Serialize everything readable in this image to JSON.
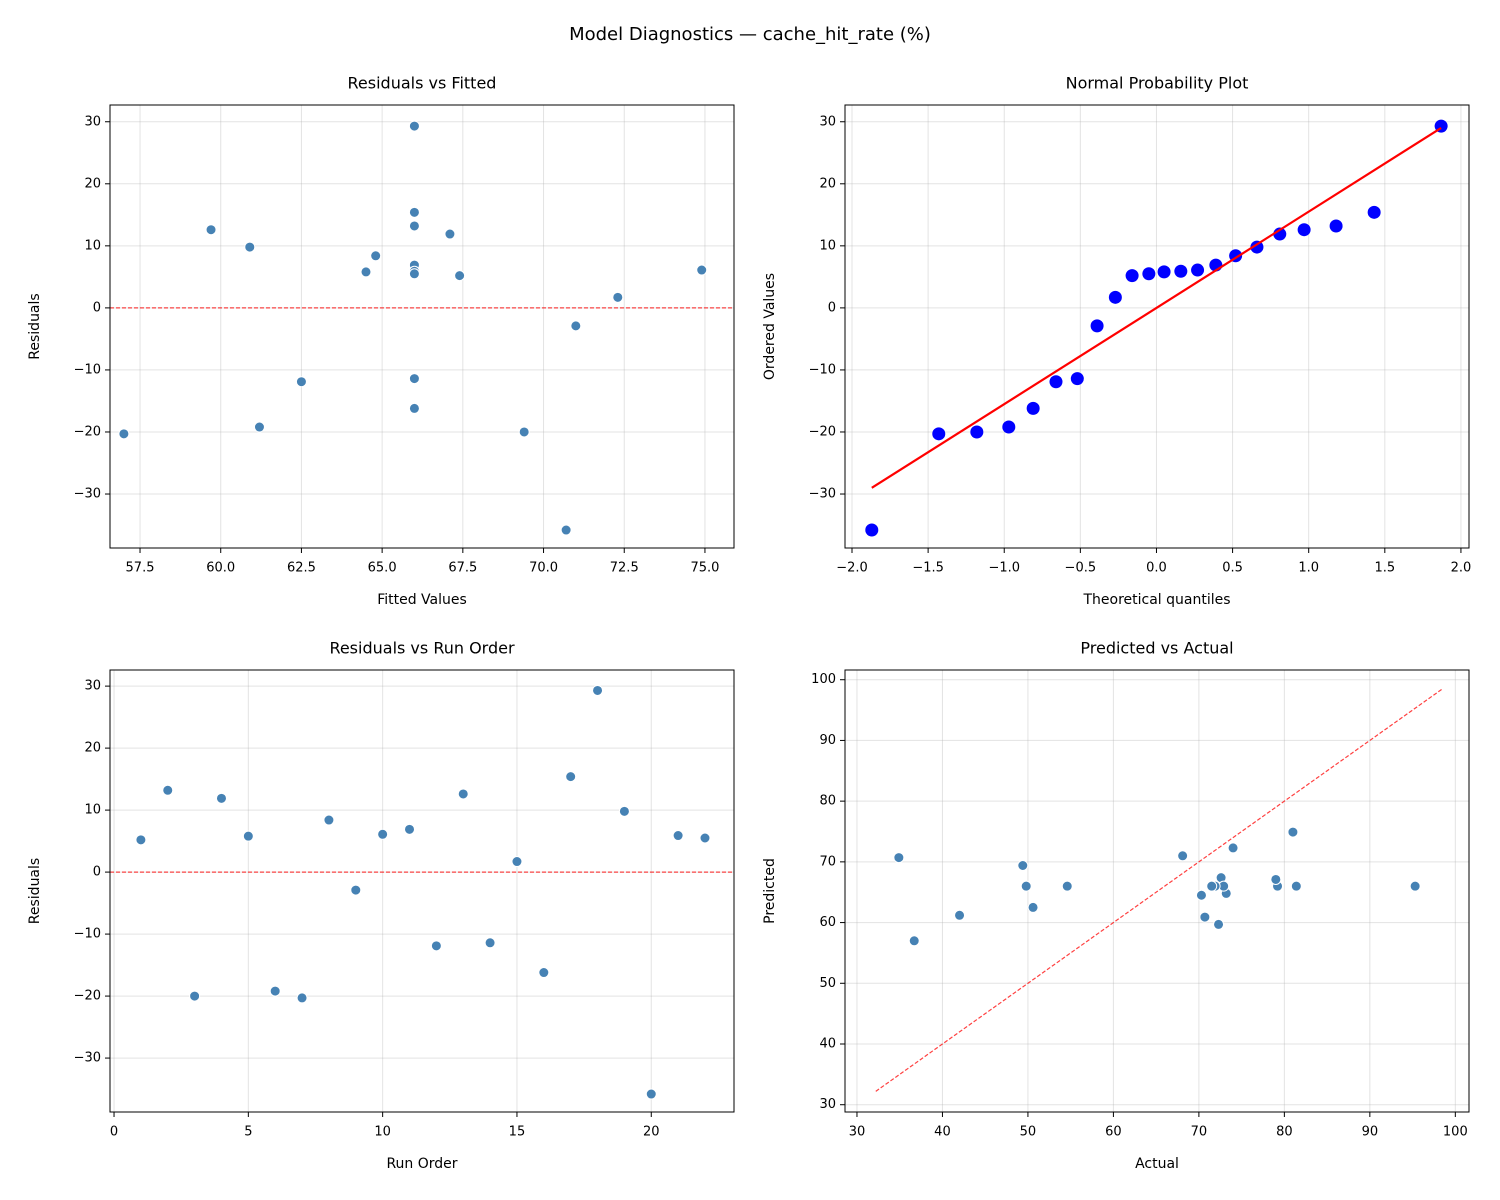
{
  "title": "Model Diagnostics — cache_hit_rate (%)",
  "chart_data": [
    {
      "type": "scatter",
      "title": "Residuals vs Fitted",
      "xlabel": "Fitted Values",
      "ylabel": "Residuals",
      "color": "#4682b4",
      "edgecolor": "#ffffff",
      "grid": true,
      "x": [
        67.4,
        66.0,
        69.4,
        67.1,
        64.5,
        61.2,
        57.0,
        64.8,
        71.0,
        74.9,
        66.0,
        62.5,
        59.7,
        66.0,
        72.3,
        66.0,
        66.0,
        66.0,
        60.9,
        70.7,
        66.0,
        66.0
      ],
      "values": [
        5.2,
        13.2,
        -20.0,
        11.9,
        5.8,
        -19.2,
        -20.3,
        8.4,
        -2.9,
        6.1,
        6.9,
        -11.9,
        12.6,
        -11.4,
        1.7,
        -16.2,
        15.4,
        29.3,
        9.8,
        -35.8,
        5.9,
        5.5
      ],
      "hline": {
        "y": 0,
        "color": "#ff0000"
      },
      "xlim": [
        56.57,
        75.9
      ],
      "xticks": [
        57.5,
        {
          "value": 60,
          "label": "60.0"
        },
        62.5,
        {
          "value": 65,
          "label": "65.0"
        },
        67.5,
        {
          "value": 70,
          "label": "70.0"
        },
        72.5,
        {
          "value": 75,
          "label": "75.0"
        }
      ],
      "ylim": [
        -38.7,
        32.7
      ],
      "yticks": [
        {
          "value": -30,
          "label": "−30"
        },
        {
          "value": -20,
          "label": "−20"
        },
        {
          "value": -10,
          "label": "−10"
        },
        0,
        10,
        20,
        30
      ]
    },
    {
      "type": "scatter",
      "title": "Normal Probability Plot",
      "xlabel": "Theoretical quantiles",
      "ylabel": "Ordered Values",
      "color": "#0000ff",
      "grid": true,
      "x": [
        -1.87,
        -1.43,
        -1.18,
        -0.97,
        -0.81,
        -0.66,
        -0.52,
        -0.39,
        -0.27,
        -0.16,
        -0.05,
        0.05,
        0.16,
        0.27,
        0.39,
        0.52,
        0.66,
        0.81,
        0.97,
        1.18,
        1.43,
        1.87
      ],
      "values": [
        -35.8,
        -20.3,
        -20.0,
        -19.2,
        -16.2,
        -11.9,
        -11.4,
        -2.9,
        1.7,
        5.2,
        5.5,
        5.8,
        5.9,
        6.1,
        6.9,
        8.4,
        9.8,
        11.9,
        12.6,
        13.2,
        15.4,
        29.3
      ],
      "fit_line": {
        "x": [
          -1.87,
          1.87
        ],
        "values": [
          -29.0,
          29.0
        ],
        "color": "#ff0000"
      },
      "xlim": [
        -2.046,
        2.053
      ],
      "xticks": [
        {
          "value": -2,
          "label": "−2.0"
        },
        {
          "value": -1.5,
          "label": "−1.5"
        },
        {
          "value": -1,
          "label": "−1.0"
        },
        {
          "value": -0.5,
          "label": "−0.5"
        },
        {
          "value": 0,
          "label": "0.0"
        },
        0.5,
        {
          "value": 1,
          "label": "1.0"
        },
        1.5,
        {
          "value": 2,
          "label": "2.0"
        }
      ],
      "ylim": [
        -38.7,
        32.7
      ],
      "yticks": [
        {
          "value": -30,
          "label": "−30"
        },
        {
          "value": -20,
          "label": "−20"
        },
        {
          "value": -10,
          "label": "−10"
        },
        0,
        10,
        20,
        30
      ]
    },
    {
      "type": "scatter",
      "title": "Residuals vs Run Order",
      "xlabel": "Run Order",
      "ylabel": "Residuals",
      "color": "#4682b4",
      "edgecolor": "#ffffff",
      "grid": true,
      "x": [
        1,
        2,
        3,
        4,
        5,
        6,
        7,
        8,
        9,
        10,
        11,
        12,
        13,
        14,
        15,
        16,
        17,
        18,
        19,
        20,
        21,
        22
      ],
      "values": [
        5.2,
        13.2,
        -20.0,
        11.9,
        5.8,
        -19.2,
        -20.3,
        8.4,
        -2.9,
        6.1,
        6.9,
        -11.9,
        12.6,
        -11.4,
        1.7,
        -16.2,
        15.4,
        29.3,
        9.8,
        -35.8,
        5.9,
        5.5
      ],
      "hline": {
        "y": 0,
        "color": "#ff0000"
      },
      "xlim": [
        -0.15,
        23.08
      ],
      "xticks": [
        0,
        5,
        10,
        15,
        20
      ],
      "ylim": [
        -38.7,
        32.6
      ],
      "yticks": [
        {
          "value": -30,
          "label": "−30"
        },
        {
          "value": -20,
          "label": "−20"
        },
        {
          "value": -10,
          "label": "−10"
        },
        0,
        10,
        20,
        30
      ]
    },
    {
      "type": "scatter",
      "title": "Predicted vs Actual",
      "xlabel": "Actual",
      "ylabel": "Predicted",
      "color": "#4682b4",
      "edgecolor": "#ffffff",
      "grid": true,
      "x": [
        72.6,
        79.2,
        49.4,
        79.0,
        70.3,
        42.0,
        36.7,
        73.2,
        68.1,
        81.0,
        72.9,
        50.6,
        72.3,
        54.6,
        74.0,
        49.8,
        81.4,
        95.3,
        70.7,
        34.9,
        71.9,
        71.5
      ],
      "values": [
        67.4,
        66.0,
        69.4,
        67.1,
        64.5,
        61.2,
        57.0,
        64.8,
        71.0,
        74.9,
        66.0,
        62.5,
        59.7,
        66.0,
        72.3,
        66.0,
        66.0,
        66.0,
        60.9,
        70.7,
        66.0,
        66.0
      ],
      "reference_line": {
        "x": [
          32.2,
          98.4
        ],
        "values": [
          32.2,
          98.4
        ],
        "color": "#ff0000"
      },
      "xlim": [
        28.6,
        101.6
      ],
      "xticks": [
        30,
        40,
        50,
        60,
        70,
        80,
        90,
        100
      ],
      "ylim": [
        28.8,
        101.6
      ],
      "yticks": [
        30,
        40,
        50,
        60,
        70,
        80,
        90,
        100
      ]
    }
  ]
}
